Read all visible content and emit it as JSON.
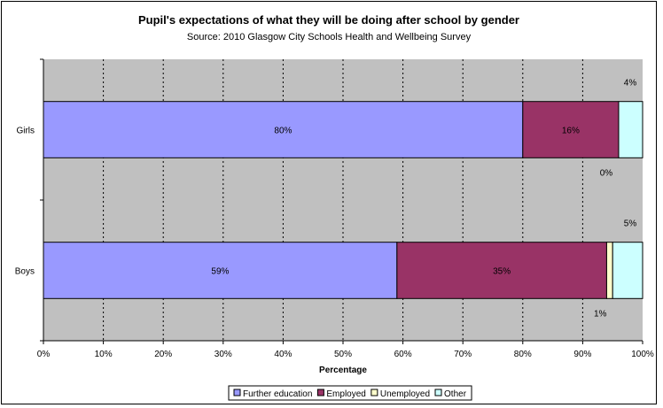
{
  "chart_data": {
    "type": "bar",
    "orientation": "horizontal",
    "stacked": true,
    "title": "Pupil's expectations of what they will be doing after school by gender",
    "subtitle": "Source: 2010 Glasgow City Schools Health and Wellbeing Survey",
    "xlabel": "Percentage",
    "ylabel": "",
    "xlim": [
      0,
      100
    ],
    "x_ticks": [
      "0%",
      "10%",
      "20%",
      "30%",
      "40%",
      "50%",
      "60%",
      "70%",
      "80%",
      "90%",
      "100%"
    ],
    "categories": [
      "Girls",
      "Boys"
    ],
    "series": [
      {
        "name": "Further education",
        "color": "#9999ff",
        "values": [
          80,
          59
        ],
        "labels": [
          "80%",
          "59%"
        ]
      },
      {
        "name": "Employed",
        "color": "#993366",
        "values": [
          16,
          35
        ],
        "labels": [
          "16%",
          "35%"
        ]
      },
      {
        "name": "Unemployed",
        "color": "#ffffcc",
        "values": [
          0,
          1
        ],
        "labels": [
          "0%",
          "1%"
        ]
      },
      {
        "name": "Other",
        "color": "#ccffff",
        "values": [
          4,
          5
        ],
        "labels": [
          "4%",
          "5%"
        ]
      }
    ],
    "grid": true,
    "plot_background": "#c0c0c0",
    "legend_position": "bottom"
  }
}
